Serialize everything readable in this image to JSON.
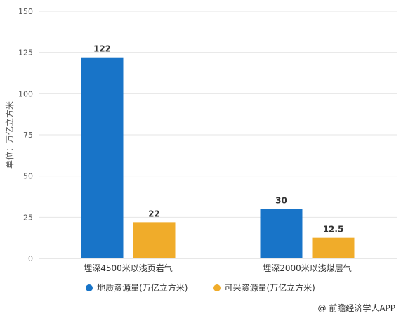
{
  "chart_data": {
    "type": "bar",
    "title": "",
    "ylabel": "单位：万亿立方米",
    "xlabel": "",
    "ylim": [
      0,
      150
    ],
    "yticks": [
      0,
      25,
      50,
      75,
      100,
      125,
      150
    ],
    "categories": [
      "埋深4500米以浅页岩气",
      "埋深2000米以浅煤层气"
    ],
    "series": [
      {
        "name": "地质资源量(万亿立方米)",
        "values": [
          122,
          30
        ],
        "labels": [
          "122",
          "30"
        ],
        "color": "#1874c8"
      },
      {
        "name": "可采资源量(万亿立方米)",
        "values": [
          22,
          12.5
        ],
        "labels": [
          "22",
          "12.5"
        ],
        "color": "#f0ac2a"
      }
    ],
    "grid": true,
    "legend_position": "bottom"
  },
  "source": "@ 前瞻经济学人APP"
}
